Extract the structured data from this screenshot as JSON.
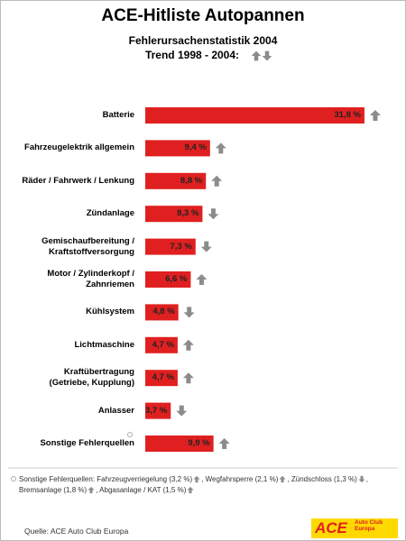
{
  "chart_data": {
    "type": "bar",
    "orientation": "horizontal",
    "title": "ACE-Hitliste Autopannen",
    "subtitle": [
      "Fehlerursachenstatistik 2004",
      "Trend 1998 - 2004:"
    ],
    "categories": [
      "Batterie",
      "Fahrzeugelektrik allgemein",
      "Räder / Fahrwerk / Lenkung",
      "Zündanlage",
      "Gemischaufbereitung /\nKraftstoffversorgung",
      "Motor / Zylinderkopf /\nZahnriemen",
      "Kühlsystem",
      "Lichtmaschine",
      "Kraftübertragung\n(Getriebe, Kupplung)",
      "Anlasser",
      "Sonstige Fehlerquellen"
    ],
    "values": [
      31.8,
      9.4,
      8.8,
      8.3,
      7.3,
      6.6,
      4.8,
      4.7,
      4.7,
      3.7,
      9.9
    ],
    "value_labels": [
      "31,8 %",
      "9,4 %",
      "8,8 %",
      "8,3 %",
      "7,3 %",
      "6,6 %",
      "4,8 %",
      "4,7 %",
      "4,7 %",
      "3,7 %",
      "9,9 %"
    ],
    "trend": [
      "up",
      "up",
      "up",
      "down",
      "down",
      "up",
      "down",
      "up",
      "up",
      "down",
      "up"
    ],
    "color": "#e02020",
    "arrow_color": "#8c8c8c"
  },
  "footnote": {
    "intro": "Sonstige Fehlerquellen:",
    "items": [
      {
        "text": "Fahrzeugverriegelung (3,2 %)",
        "trend": "up"
      },
      {
        "text": "Wegfahrsperre (2,1 %)",
        "trend": "up"
      },
      {
        "text": "Zündschloss (1,3 %)",
        "trend": "down"
      },
      {
        "text": "Bremsanlage (1,8 %)",
        "trend": "up"
      },
      {
        "text": "Abgasanlage / KAT (1,5 %)",
        "trend": "up"
      }
    ]
  },
  "source": "Quelle: ACE Auto Club Europa",
  "logo": {
    "name": "ACE",
    "text": "Auto Club Europa"
  }
}
